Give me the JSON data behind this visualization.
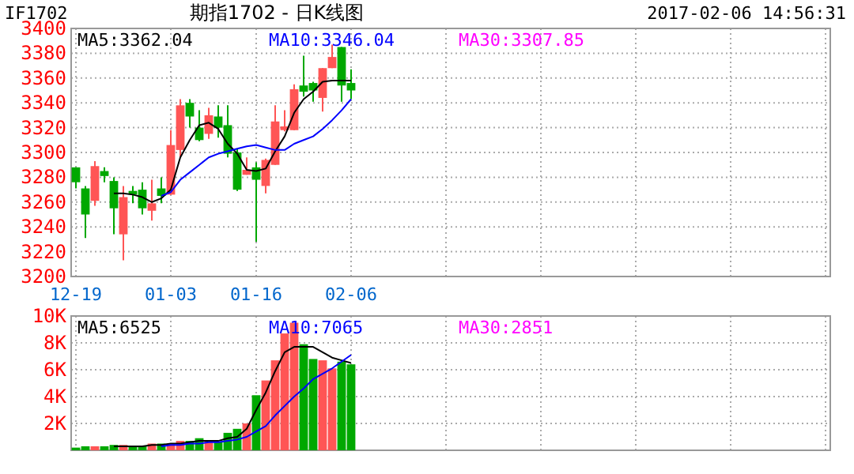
{
  "chart_data": [
    {
      "type": "candlestick",
      "title": "期指1702 - 日K线图",
      "annotations": [
        "IF1702",
        "2017-02-06 14:56:31"
      ],
      "categories": [
        "12-19",
        null,
        null,
        null,
        null,
        null,
        null,
        null,
        null,
        null,
        "01-03",
        null,
        null,
        null,
        null,
        null,
        null,
        null,
        null,
        "01-16",
        null,
        null,
        null,
        null,
        null,
        null,
        null,
        null,
        null,
        "02-06"
      ],
      "ohlc": [
        [
          3288,
          3288,
          3271,
          3276
        ],
        [
          3271,
          3273,
          3231,
          3250
        ],
        [
          3261,
          3293,
          3257,
          3289
        ],
        [
          3285,
          3288,
          3276,
          3281
        ],
        [
          3277,
          3280,
          3234,
          3255
        ],
        [
          3234,
          3273,
          3213,
          3264
        ],
        [
          3269,
          3273,
          3259,
          3266
        ],
        [
          3270,
          3276,
          3250,
          3255
        ],
        [
          3253,
          3278,
          3245,
          3259
        ],
        [
          3271,
          3280,
          3259,
          3265
        ],
        [
          3266,
          3318,
          3266,
          3306
        ],
        [
          3302,
          3343,
          3296,
          3338
        ],
        [
          3340,
          3343,
          3320,
          3329
        ],
        [
          3320,
          3334,
          3309,
          3310
        ],
        [
          3315,
          3336,
          3311,
          3330
        ],
        [
          3329,
          3338,
          3312,
          3320
        ],
        [
          3322,
          3338,
          3296,
          3299
        ],
        [
          3300,
          3303,
          3269,
          3270
        ],
        [
          3282,
          3296,
          3282,
          3286
        ],
        [
          3288,
          3292,
          3228,
          3278
        ],
        [
          3273,
          3295,
          3267,
          3294
        ],
        [
          3290,
          3338,
          3290,
          3325
        ],
        [
          3318,
          3334,
          3317,
          3321
        ],
        [
          3318,
          3355,
          3318,
          3351
        ],
        [
          3354,
          3378,
          3345,
          3349
        ],
        [
          3356,
          3357,
          3341,
          3350
        ],
        [
          3344,
          3368,
          3333,
          3368
        ],
        [
          3368,
          3387,
          3368,
          3377
        ],
        [
          3385,
          3385,
          3341,
          3354
        ],
        [
          3356,
          3367,
          3343,
          3350
        ]
      ],
      "colors": [
        "#00a800",
        "#00a800",
        "#ff5555",
        "#00a800",
        "#00a800",
        "#ff5555",
        "#00a800",
        "#00a800",
        "#ff5555",
        "#00a800",
        "#ff5555",
        "#ff5555",
        "#00a800",
        "#00a800",
        "#ff5555",
        "#00a800",
        "#00a800",
        "#00a800",
        "#ff5555",
        "#00a800",
        "#ff5555",
        "#ff5555",
        "#ff5555",
        "#ff5555",
        "#00a800",
        "#00a800",
        "#ff5555",
        "#ff5555",
        "#00a800",
        "#00a800"
      ],
      "series": [
        {
          "name": "MA5:3362.04",
          "type": "line",
          "color": "#000000",
          "values": [
            null,
            null,
            null,
            null,
            3267,
            3267,
            3266,
            3264,
            3260,
            3263,
            3270,
            3296,
            3310,
            3322,
            3324,
            3319,
            3307,
            3299,
            3286,
            3285,
            3287,
            3301,
            3313,
            3332,
            3343,
            3349,
            3357,
            3358,
            3358,
            3358
          ]
        },
        {
          "name": "MA10:3346.04",
          "type": "line",
          "color": "#0000ff",
          "values": [
            null,
            null,
            null,
            null,
            null,
            null,
            null,
            null,
            null,
            3265,
            3268,
            3278,
            3284,
            3290,
            3296,
            3299,
            3301,
            3303,
            3305,
            3306,
            3304,
            3302,
            3302,
            3307,
            3310,
            3313,
            3319,
            3326,
            3334,
            3343
          ]
        },
        {
          "name": "MA30:3307.85",
          "type": "line",
          "color": "#ff00ff",
          "values": [
            null,
            null,
            null,
            null,
            null,
            null,
            null,
            null,
            null,
            null,
            null,
            null,
            null,
            null,
            null,
            null,
            null,
            null,
            null,
            null,
            null,
            null,
            null,
            null,
            null,
            null,
            null,
            null,
            null,
            null
          ]
        }
      ],
      "ylim": [
        3200,
        3400
      ],
      "yticks": [
        3200,
        3220,
        3240,
        3260,
        3280,
        3300,
        3320,
        3340,
        3360,
        3380,
        3400
      ],
      "grid": true
    },
    {
      "type": "bar",
      "categories": [
        null,
        null,
        null,
        null,
        null,
        null,
        null,
        null,
        null,
        null,
        null,
        null,
        null,
        null,
        null,
        null,
        null,
        null,
        null,
        null,
        null,
        null,
        null,
        null,
        null,
        null,
        null,
        null,
        null,
        null
      ],
      "series": [
        {
          "type": "bar",
          "values": [
            0.2,
            0.3,
            0.3,
            0.3,
            0.4,
            0.4,
            0.3,
            0.3,
            0.5,
            0.5,
            0.5,
            0.7,
            0.7,
            0.9,
            0.7,
            0.6,
            1.3,
            1.6,
            2.0,
            4.1,
            5.2,
            6.7,
            8.7,
            9.5,
            7.9,
            6.8,
            6.7,
            6.1,
            6.6,
            6.4
          ],
          "colors": [
            "#00a800",
            "#00a800",
            "#ff5555",
            "#00a800",
            "#00a800",
            "#ff5555",
            "#00a800",
            "#00a800",
            "#ff5555",
            "#00a800",
            "#ff5555",
            "#ff5555",
            "#00a800",
            "#00a800",
            "#ff5555",
            "#00a800",
            "#00a800",
            "#00a800",
            "#ff5555",
            "#00a800",
            "#ff5555",
            "#ff5555",
            "#ff5555",
            "#ff5555",
            "#00a800",
            "#00a800",
            "#ff5555",
            "#ff5555",
            "#00a800",
            "#00a800"
          ]
        },
        {
          "name": "MA5:6525",
          "type": "line",
          "color": "#000000",
          "values": [
            null,
            null,
            null,
            null,
            0.3,
            0.3,
            0.3,
            0.3,
            0.4,
            0.4,
            0.5,
            0.5,
            0.6,
            0.7,
            0.7,
            0.7,
            0.9,
            1.0,
            1.6,
            3.0,
            4.3,
            5.9,
            7.3,
            7.7,
            7.7,
            7.7,
            7.3,
            6.9,
            6.7,
            6.5
          ]
        },
        {
          "name": "MA10:7065",
          "type": "line",
          "color": "#0000ff",
          "values": [
            null,
            null,
            null,
            null,
            null,
            null,
            null,
            null,
            null,
            0.3,
            0.4,
            0.4,
            0.5,
            0.5,
            0.6,
            0.6,
            0.7,
            0.8,
            1.0,
            1.4,
            1.8,
            2.6,
            3.3,
            4.0,
            4.6,
            5.3,
            5.7,
            6.1,
            6.6,
            7.1
          ]
        },
        {
          "name": "MA30:2851",
          "type": "line",
          "color": "#ff00ff",
          "values": [
            null,
            null,
            null,
            null,
            null,
            null,
            null,
            null,
            null,
            null,
            null,
            null,
            null,
            null,
            null,
            null,
            null,
            null,
            null,
            null,
            null,
            null,
            null,
            null,
            null,
            null,
            null,
            null,
            null,
            null
          ]
        }
      ],
      "ylim": [
        0,
        10
      ],
      "yticks": [
        {
          "value": 0,
          "label": null
        },
        {
          "value": 2,
          "label": "2K"
        },
        {
          "value": 4,
          "label": "4K"
        },
        {
          "value": 6,
          "label": "6K"
        },
        {
          "value": 8,
          "label": "8K"
        },
        {
          "value": 10,
          "label": "10K"
        }
      ],
      "tick_labels": "y",
      "grid": true
    }
  ]
}
